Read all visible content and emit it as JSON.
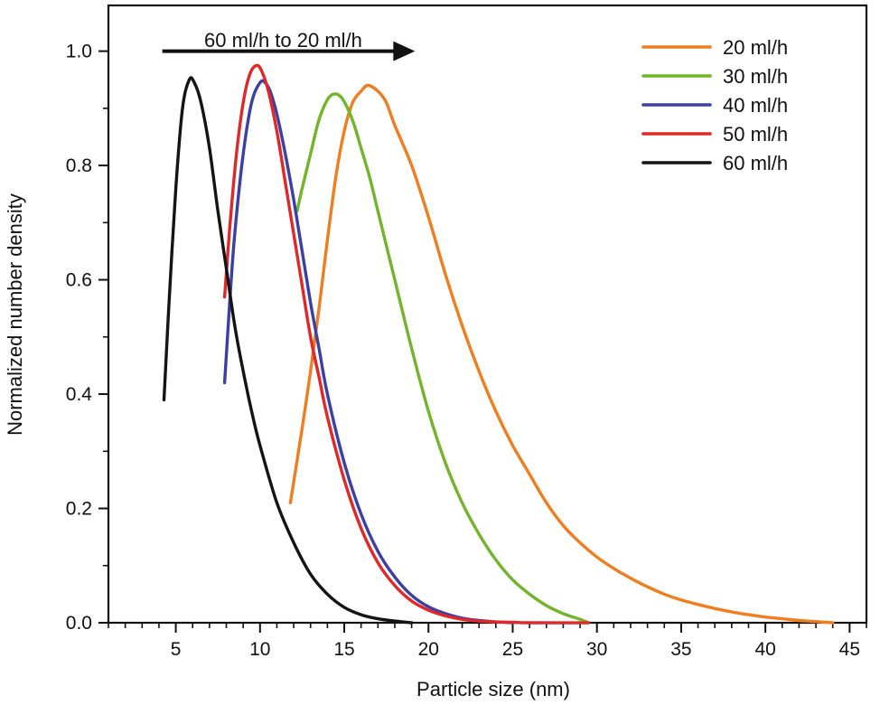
{
  "chart_data": {
    "type": "line",
    "title": "",
    "xlabel": "Particle size (nm)",
    "ylabel": "Normalized number density",
    "xlim": [
      1,
      46
    ],
    "ylim": [
      0,
      1.08
    ],
    "xticks": [
      5,
      10,
      15,
      20,
      25,
      30,
      35,
      40,
      45
    ],
    "xtick_labels": [
      "5",
      "10",
      "15",
      "20",
      "25",
      "30",
      "35",
      "40",
      "45"
    ],
    "yticks": [
      0.0,
      0.2,
      0.4,
      0.6,
      0.8,
      1.0
    ],
    "ytick_labels": [
      "0.0",
      "0.2",
      "0.4",
      "0.6",
      "0.8",
      "1.0"
    ],
    "legend_position": "top-right",
    "annotation": {
      "text": "60 ml/h to 20 ml/h",
      "arrow_from": [
        4.2,
        1.0
      ],
      "arrow_to": [
        19.2,
        1.0
      ]
    },
    "series": [
      {
        "name": "20 ml/h",
        "color": "#f07d1e",
        "x": [
          11.8,
          12.5,
          13.0,
          13.5,
          14.0,
          14.5,
          15.0,
          15.5,
          16.0,
          16.4,
          17.0,
          17.5,
          18.0,
          19.0,
          20.0,
          21.0,
          22.0,
          23.0,
          24.0,
          25.0,
          26.0,
          27.0,
          28.0,
          29.0,
          30.0,
          31.0,
          32.0,
          33.0,
          34.0,
          35.0,
          36.0,
          37.0,
          38.0,
          39.0,
          40.0,
          41.0,
          42.0,
          43.0,
          44.0
        ],
        "y": [
          0.21,
          0.34,
          0.44,
          0.55,
          0.67,
          0.78,
          0.86,
          0.91,
          0.93,
          0.94,
          0.93,
          0.91,
          0.87,
          0.8,
          0.71,
          0.61,
          0.52,
          0.44,
          0.37,
          0.31,
          0.26,
          0.21,
          0.17,
          0.14,
          0.115,
          0.095,
          0.078,
          0.063,
          0.05,
          0.04,
          0.032,
          0.025,
          0.019,
          0.014,
          0.01,
          0.007,
          0.004,
          0.002,
          0.0
        ]
      },
      {
        "name": "30 ml/h",
        "color": "#72b52b",
        "x": [
          12.2,
          12.5,
          13.0,
          13.5,
          14.0,
          14.4,
          14.8,
          15.2,
          15.6,
          16.0,
          16.5,
          17.0,
          17.5,
          18.0,
          19.0,
          20.0,
          21.0,
          22.0,
          23.0,
          24.0,
          25.0,
          26.0,
          27.0,
          28.0,
          29.0,
          29.5
        ],
        "y": [
          0.72,
          0.76,
          0.82,
          0.88,
          0.915,
          0.925,
          0.92,
          0.9,
          0.87,
          0.83,
          0.78,
          0.72,
          0.66,
          0.6,
          0.48,
          0.37,
          0.28,
          0.21,
          0.155,
          0.11,
          0.075,
          0.05,
          0.03,
          0.016,
          0.006,
          0.0
        ]
      },
      {
        "name": "40 ml/h",
        "color": "#3c3fa3",
        "x": [
          7.9,
          8.2,
          8.5,
          9.0,
          9.5,
          10.0,
          10.3,
          10.6,
          11.0,
          11.5,
          12.0,
          12.5,
          13.0,
          13.5,
          14.0,
          15.0,
          16.0,
          17.0,
          18.0,
          19.0,
          20.0,
          21.0,
          22.0,
          23.0,
          24.0,
          25.0
        ],
        "y": [
          0.42,
          0.56,
          0.68,
          0.82,
          0.91,
          0.945,
          0.945,
          0.93,
          0.89,
          0.82,
          0.74,
          0.65,
          0.56,
          0.48,
          0.4,
          0.28,
          0.19,
          0.125,
          0.08,
          0.048,
          0.028,
          0.016,
          0.008,
          0.004,
          0.0015,
          0.0
        ]
      },
      {
        "name": "50 ml/h",
        "color": "#e02828",
        "x": [
          7.9,
          8.2,
          8.6,
          9.0,
          9.4,
          9.8,
          10.1,
          10.5,
          11.0,
          11.5,
          12.0,
          12.5,
          13.0,
          13.5,
          14.0,
          15.0,
          16.0,
          17.0,
          18.0,
          19.0,
          20.0,
          21.0,
          22.0,
          23.0,
          24.0,
          25.0,
          26.0,
          29.5
        ],
        "y": [
          0.57,
          0.69,
          0.82,
          0.91,
          0.96,
          0.975,
          0.965,
          0.93,
          0.86,
          0.77,
          0.68,
          0.59,
          0.5,
          0.43,
          0.36,
          0.25,
          0.165,
          0.105,
          0.065,
          0.038,
          0.022,
          0.012,
          0.006,
          0.003,
          0.0015,
          0.0008,
          0.0,
          0.0
        ]
      },
      {
        "name": "60 ml/h",
        "color": "#141414",
        "x": [
          4.3,
          4.6,
          5.0,
          5.4,
          5.8,
          6.1,
          6.5,
          7.0,
          7.5,
          8.0,
          8.5,
          9.0,
          9.5,
          10.0,
          11.0,
          12.0,
          13.0,
          14.0,
          15.0,
          16.0,
          17.0,
          18.0,
          19.0
        ],
        "y": [
          0.39,
          0.56,
          0.76,
          0.9,
          0.95,
          0.945,
          0.91,
          0.83,
          0.72,
          0.62,
          0.52,
          0.44,
          0.37,
          0.31,
          0.21,
          0.14,
          0.085,
          0.05,
          0.027,
          0.014,
          0.007,
          0.003,
          0.0
        ]
      }
    ]
  }
}
